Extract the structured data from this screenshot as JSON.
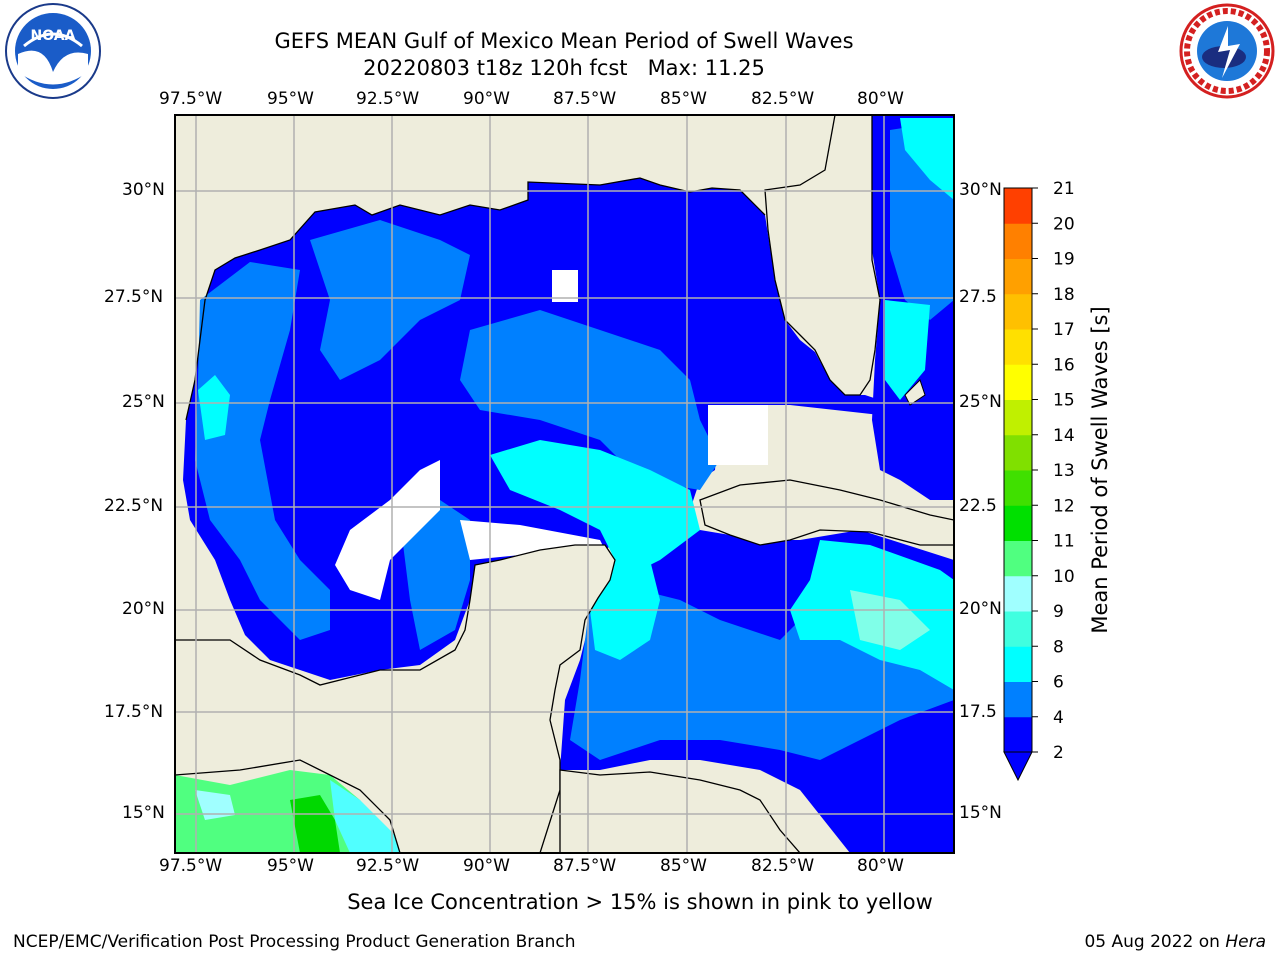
{
  "header": {
    "title_line1": "GEFS MEAN Gulf of Mexico Mean Period of Swell Waves",
    "title_line2": "20220803 t18z 120h fcst   Max: 11.25",
    "left_logo_text": "NOAA",
    "right_logo_text": "NATIONAL WEATHER SERVICE"
  },
  "map": {
    "lon_labels": [
      "97.5°W",
      "95°W",
      "92.5°W",
      "90°W",
      "87.5°W",
      "85°W",
      "82.5°W",
      "80°W"
    ],
    "lat_labels_left": [
      "30°N",
      "27.5°N",
      "25°N",
      "22.5°N",
      "20°N",
      "17.5°N",
      "15°N"
    ],
    "lat_labels_right": [
      "30°N",
      "27.5",
      "25°N",
      "22.5",
      "20°N",
      "17.5",
      "15°N"
    ],
    "land_color": "#eeeddc",
    "ocean_palette": {
      "2-4": "#0000ff",
      "4-6": "#0080ff",
      "6-8": "#00ffff",
      "8-10": "#50ff80",
      "10-12": "#00d800"
    }
  },
  "colorbar": {
    "label": "Mean Period of Swell Waves [s]",
    "ticks": [
      "2",
      "4",
      "6",
      "8",
      "9",
      "10",
      "11",
      "12",
      "13",
      "14",
      "15",
      "16",
      "17",
      "18",
      "19",
      "20",
      "21"
    ],
    "colors": [
      "#0000ff",
      "#0080ff",
      "#00ffff",
      "#40ffe0",
      "#a0ffff",
      "#50ff80",
      "#00e000",
      "#40e000",
      "#80e000",
      "#c0f000",
      "#ffff00",
      "#ffe000",
      "#ffc000",
      "#ffa000",
      "#ff8000",
      "#ff4000",
      "#ff0000"
    ]
  },
  "note": "Sea Ice Concentration > 15% is shown in pink to yellow",
  "footer": {
    "left": "NCEP/EMC/Verification Post Processing Product Generation Branch",
    "right_date": "05 Aug 2022 on ",
    "right_machine": "Hera"
  }
}
